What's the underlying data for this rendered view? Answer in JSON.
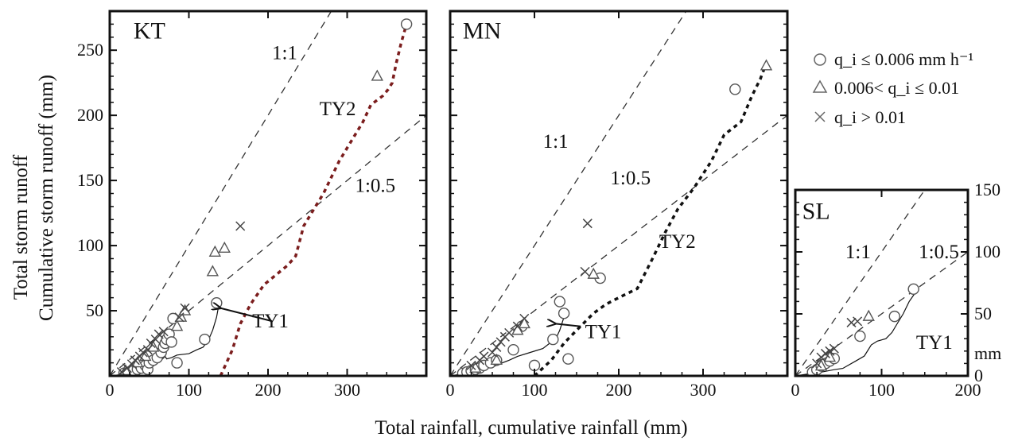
{
  "figure": {
    "xlabel": "Total  rainfall, cumulative rainfall (mm)",
    "ylabel_line1": "Total storm runoff",
    "ylabel_line2": "Cumulative storm runoff (mm)",
    "colors": {
      "ty2_kt": "#7b1d1d",
      "ty2_mn": "#111111",
      "ink": "#111111"
    }
  },
  "legend": [
    {
      "marker": "circle",
      "label": "q_i ≤ 0.006 mm h⁻¹"
    },
    {
      "marker": "triangle",
      "label": "0.006< q_i ≤ 0.01"
    },
    {
      "marker": "cross",
      "label": "q_i > 0.01"
    }
  ],
  "chart_data": [
    {
      "type": "scatter",
      "panel": "KT",
      "xlim": [
        0,
        400
      ],
      "ylim": [
        0,
        280
      ],
      "x_ticks": [
        "0",
        "100",
        "200",
        "300"
      ],
      "y_ticks": [
        "50",
        "100",
        "150",
        "200",
        "250"
      ],
      "y_tick_values": [
        50,
        100,
        150,
        200,
        250
      ],
      "x_tick_values": [
        0,
        100,
        200,
        300
      ],
      "series": [
        {
          "name": "q_i ≤ 0.006 mm h⁻¹",
          "marker": "circle",
          "x": [
            18,
            25,
            30,
            35,
            40,
            45,
            48,
            50,
            55,
            60,
            65,
            68,
            70,
            72,
            75,
            78,
            80,
            85,
            120,
            135,
            375
          ],
          "y": [
            2,
            3,
            4,
            5,
            6,
            8,
            5,
            10,
            12,
            14,
            18,
            22,
            25,
            28,
            32,
            26,
            44,
            10,
            28,
            56,
            270
          ]
        },
        {
          "name": "0.006< q_i ≤ 0.01",
          "marker": "triangle",
          "x": [
            20,
            35,
            45,
            55,
            85,
            90,
            95,
            130,
            133,
            145,
            338
          ],
          "y": [
            4,
            10,
            15,
            22,
            38,
            45,
            50,
            80,
            95,
            98,
            230
          ]
        },
        {
          "name": "q_i > 0.01",
          "marker": "cross",
          "x": [
            15,
            22,
            28,
            32,
            38,
            42,
            48,
            52,
            58,
            62,
            68,
            88,
            95,
            165
          ],
          "y": [
            3,
            6,
            9,
            12,
            15,
            18,
            20,
            25,
            28,
            32,
            34,
            45,
            52,
            115
          ]
        }
      ],
      "reference_lines": [
        {
          "label": "1:1",
          "slope": 1
        },
        {
          "label": "1:0.5",
          "slope": 0.5
        }
      ],
      "cumulative_curves": [
        {
          "label": "TY1",
          "style": "solid",
          "x": [
            0,
            30,
            45,
            55,
            60,
            65,
            70,
            72,
            78,
            85,
            100,
            110,
            118,
            125,
            130,
            135,
            138
          ],
          "y": [
            0,
            2,
            5,
            8,
            10,
            12,
            15,
            13,
            14,
            16,
            17,
            20,
            22,
            28,
            35,
            45,
            55
          ]
        },
        {
          "label": "TY2",
          "style": "dashed",
          "x": [
            140,
            155,
            165,
            178,
            195,
            215,
            225,
            235,
            245,
            255,
            270,
            290,
            305,
            320,
            330,
            345,
            352,
            357,
            362,
            368,
            375
          ],
          "y": [
            0,
            20,
            40,
            55,
            70,
            80,
            85,
            92,
            115,
            125,
            140,
            165,
            180,
            195,
            208,
            215,
            220,
            225,
            240,
            255,
            270
          ]
        }
      ],
      "annotations": [
        {
          "text": "KT",
          "x": 30,
          "y": 265
        },
        {
          "text": "1:1",
          "x": 205,
          "y": 248
        },
        {
          "text": "TY2",
          "x": 265,
          "y": 205
        },
        {
          "text": "1:0.5",
          "x": 310,
          "y": 146
        },
        {
          "text": "TY1",
          "x": 180,
          "y": 42
        }
      ]
    },
    {
      "type": "scatter",
      "panel": "MN",
      "xlim": [
        0,
        400
      ],
      "ylim": [
        0,
        280
      ],
      "x_ticks": [
        "0",
        "100",
        "200",
        "300"
      ],
      "x_tick_values": [
        0,
        100,
        200,
        300
      ],
      "series": [
        {
          "name": "q_i ≤ 0.006 mm h⁻¹",
          "marker": "circle",
          "x": [
            15,
            20,
            25,
            30,
            35,
            40,
            48,
            55,
            75,
            85,
            100,
            122,
            130,
            135,
            140,
            178,
            338
          ],
          "y": [
            2,
            3,
            4,
            5,
            6,
            8,
            10,
            12,
            20,
            38,
            8,
            28,
            57,
            48,
            13,
            75,
            220
          ]
        },
        {
          "name": "0.006< q_i ≤ 0.01",
          "marker": "triangle",
          "x": [
            30,
            55,
            80,
            88,
            170,
            375
          ],
          "y": [
            6,
            12,
            35,
            40,
            78,
            238
          ]
        },
        {
          "name": "q_i > 0.01",
          "marker": "cross",
          "x": [
            25,
            35,
            40,
            50,
            55,
            60,
            65,
            70,
            80,
            88,
            160,
            163
          ],
          "y": [
            8,
            12,
            15,
            18,
            22,
            26,
            30,
            33,
            38,
            44,
            80,
            117
          ]
        }
      ],
      "reference_lines": [
        {
          "label": "1:1",
          "slope": 1
        },
        {
          "label": "1:0.5",
          "slope": 0.5
        }
      ],
      "cumulative_curves": [
        {
          "label": "TY1",
          "style": "solid",
          "x": [
            0,
            30,
            45,
            55,
            62,
            70,
            80,
            95,
            110,
            118,
            125,
            130,
            135
          ],
          "y": [
            0,
            3,
            6,
            8,
            10,
            12,
            15,
            18,
            21,
            25,
            28,
            35,
            45
          ]
        },
        {
          "label": "TY2",
          "style": "dashed",
          "x": [
            100,
            120,
            135,
            150,
            170,
            185,
            200,
            222,
            240,
            255,
            270,
            290,
            310,
            325,
            345,
            358,
            368,
            375
          ],
          "y": [
            0,
            12,
            25,
            35,
            48,
            55,
            60,
            67,
            90,
            110,
            128,
            145,
            165,
            185,
            195,
            215,
            228,
            240
          ]
        }
      ],
      "annotations": [
        {
          "text": "MN",
          "x": 15,
          "y": 265
        },
        {
          "text": "1:1",
          "x": 110,
          "y": 180
        },
        {
          "text": "1:0.5",
          "x": 190,
          "y": 152
        },
        {
          "text": "TY2",
          "x": 248,
          "y": 103
        },
        {
          "text": "TY1",
          "x": 160,
          "y": 34
        }
      ]
    },
    {
      "type": "scatter",
      "panel": "SL",
      "xlim": [
        0,
        200
      ],
      "ylim": [
        0,
        150
      ],
      "x_ticks": [
        "0",
        "100",
        "200"
      ],
      "x_tick_values": [
        0,
        100,
        200
      ],
      "y_ticks": [
        "0",
        "50",
        "100",
        "150"
      ],
      "y_tick_values": [
        0,
        50,
        100,
        150
      ],
      "y_unit": "mm",
      "series": [
        {
          "name": "q_i ≤ 0.006 mm h⁻¹",
          "marker": "circle",
          "x": [
            20,
            25,
            30,
            35,
            40,
            45,
            75,
            115,
            137
          ],
          "y": [
            3,
            5,
            8,
            10,
            12,
            14,
            32,
            48,
            70
          ]
        },
        {
          "name": "0.006< q_i ≤ 0.01",
          "marker": "triangle",
          "x": [
            30,
            40,
            85
          ],
          "y": [
            8,
            15,
            48
          ]
        },
        {
          "name": "q_i > 0.01",
          "marker": "cross",
          "x": [
            25,
            30,
            35,
            40,
            45,
            65,
            72
          ],
          "y": [
            10,
            15,
            18,
            20,
            22,
            43,
            44
          ]
        }
      ],
      "reference_lines": [
        {
          "label": "1:1",
          "slope": 1
        },
        {
          "label": "1:0.5",
          "slope": 0.5
        }
      ],
      "cumulative_curves": [
        {
          "label": "TY1",
          "style": "solid",
          "x": [
            0,
            30,
            45,
            55,
            60,
            70,
            80,
            88,
            95,
            105,
            112,
            118,
            125,
            132,
            140
          ],
          "y": [
            0,
            3,
            5,
            6,
            8,
            12,
            16,
            25,
            28,
            30,
            35,
            42,
            50,
            60,
            68
          ]
        }
      ],
      "annotations": [
        {
          "text": "SL",
          "x": 8,
          "y": 133
        },
        {
          "text": "1:1",
          "x": 58,
          "y": 100
        },
        {
          "text": "1:0.5",
          "x": 143,
          "y": 100
        },
        {
          "text": "TY1",
          "x": 140,
          "y": 27
        }
      ]
    }
  ]
}
